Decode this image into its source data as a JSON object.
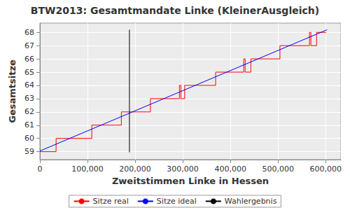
{
  "chart_data": {
    "type": "line",
    "title": "BTW2013: Gesamtmandate Linke (KleinerAusgleich)",
    "x_label": "Zweitstimmen Linke in Hessen",
    "y_label": "Gesamtsitze",
    "xlim": [
      0,
      632000
    ],
    "xticks": [
      0,
      {
        "value": 100000,
        "label": "100,000"
      },
      {
        "value": 200000,
        "label": "200,000"
      },
      {
        "value": 300000,
        "label": "300,000"
      },
      {
        "value": 400000,
        "label": "400,000"
      },
      {
        "value": 500000,
        "label": "500,000"
      },
      {
        "value": 600000,
        "label": "600,000"
      }
    ],
    "ylim": [
      58.4,
      68.7
    ],
    "yticks": [
      59,
      60,
      61,
      62,
      63,
      64,
      65,
      66,
      67,
      68
    ],
    "grid": true,
    "legend": "bottom",
    "series": [
      {
        "name": "Sitze real",
        "color": "#ff0000",
        "line_style": "step",
        "x": [
          0,
          34000,
          109000,
          171000,
          232000,
          293000,
          296000,
          304000,
          369000,
          428000,
          431000,
          443000,
          504000,
          566000,
          569000,
          581000,
          601000
        ],
        "values": [
          59,
          60,
          61,
          62,
          63,
          64,
          63,
          64,
          65,
          66,
          65,
          66,
          67,
          68,
          67,
          68,
          68
        ]
      },
      {
        "name": "Sitze ideal",
        "color": "#0000ff",
        "line_style": "solid",
        "x": [
          0,
          603000
        ],
        "values": [
          59.05,
          68.2
        ]
      },
      {
        "name": "Wahlergebnis",
        "color": "#000000",
        "line_style": "solid",
        "x": [
          188000,
          188000
        ],
        "values": [
          58.95,
          68.2
        ]
      }
    ]
  }
}
